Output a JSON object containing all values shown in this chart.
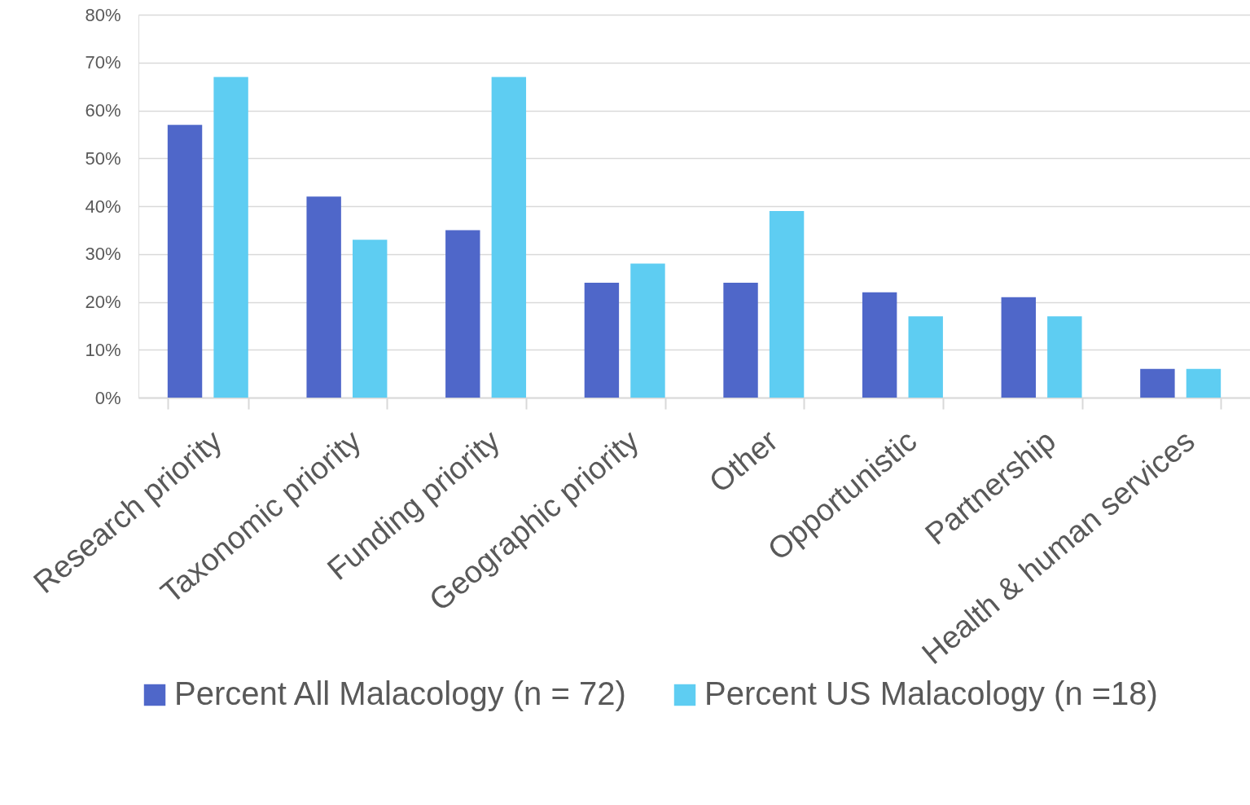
{
  "chart_data": {
    "type": "bar",
    "categories": [
      "Research priority",
      "Taxonomic priority",
      "Funding priority",
      "Geographic priority",
      "Other",
      "Opportunistic",
      "Partnership",
      "Health & human services"
    ],
    "series": [
      {
        "name": "Percent All Malacology (n = 72)",
        "color": "#4f67c9",
        "values": [
          57,
          42,
          35,
          24,
          24,
          22,
          21,
          6
        ]
      },
      {
        "name": "Percent US Malacology (n =18)",
        "color": "#5ecdf2",
        "values": [
          67,
          33,
          67,
          28,
          39,
          17,
          17,
          6
        ]
      }
    ],
    "ylim": [
      0,
      80
    ],
    "yticks": [
      {
        "value": 0,
        "label": "0%"
      },
      {
        "value": 10,
        "label": "10%"
      },
      {
        "value": 20,
        "label": "20%"
      },
      {
        "value": 30,
        "label": "30%"
      },
      {
        "value": 40,
        "label": "40%"
      },
      {
        "value": 50,
        "label": "50%"
      },
      {
        "value": 60,
        "label": "60%"
      },
      {
        "value": 70,
        "label": "70%"
      },
      {
        "value": 80,
        "label": "80%"
      }
    ],
    "grid": "y",
    "legend": "bottom"
  }
}
